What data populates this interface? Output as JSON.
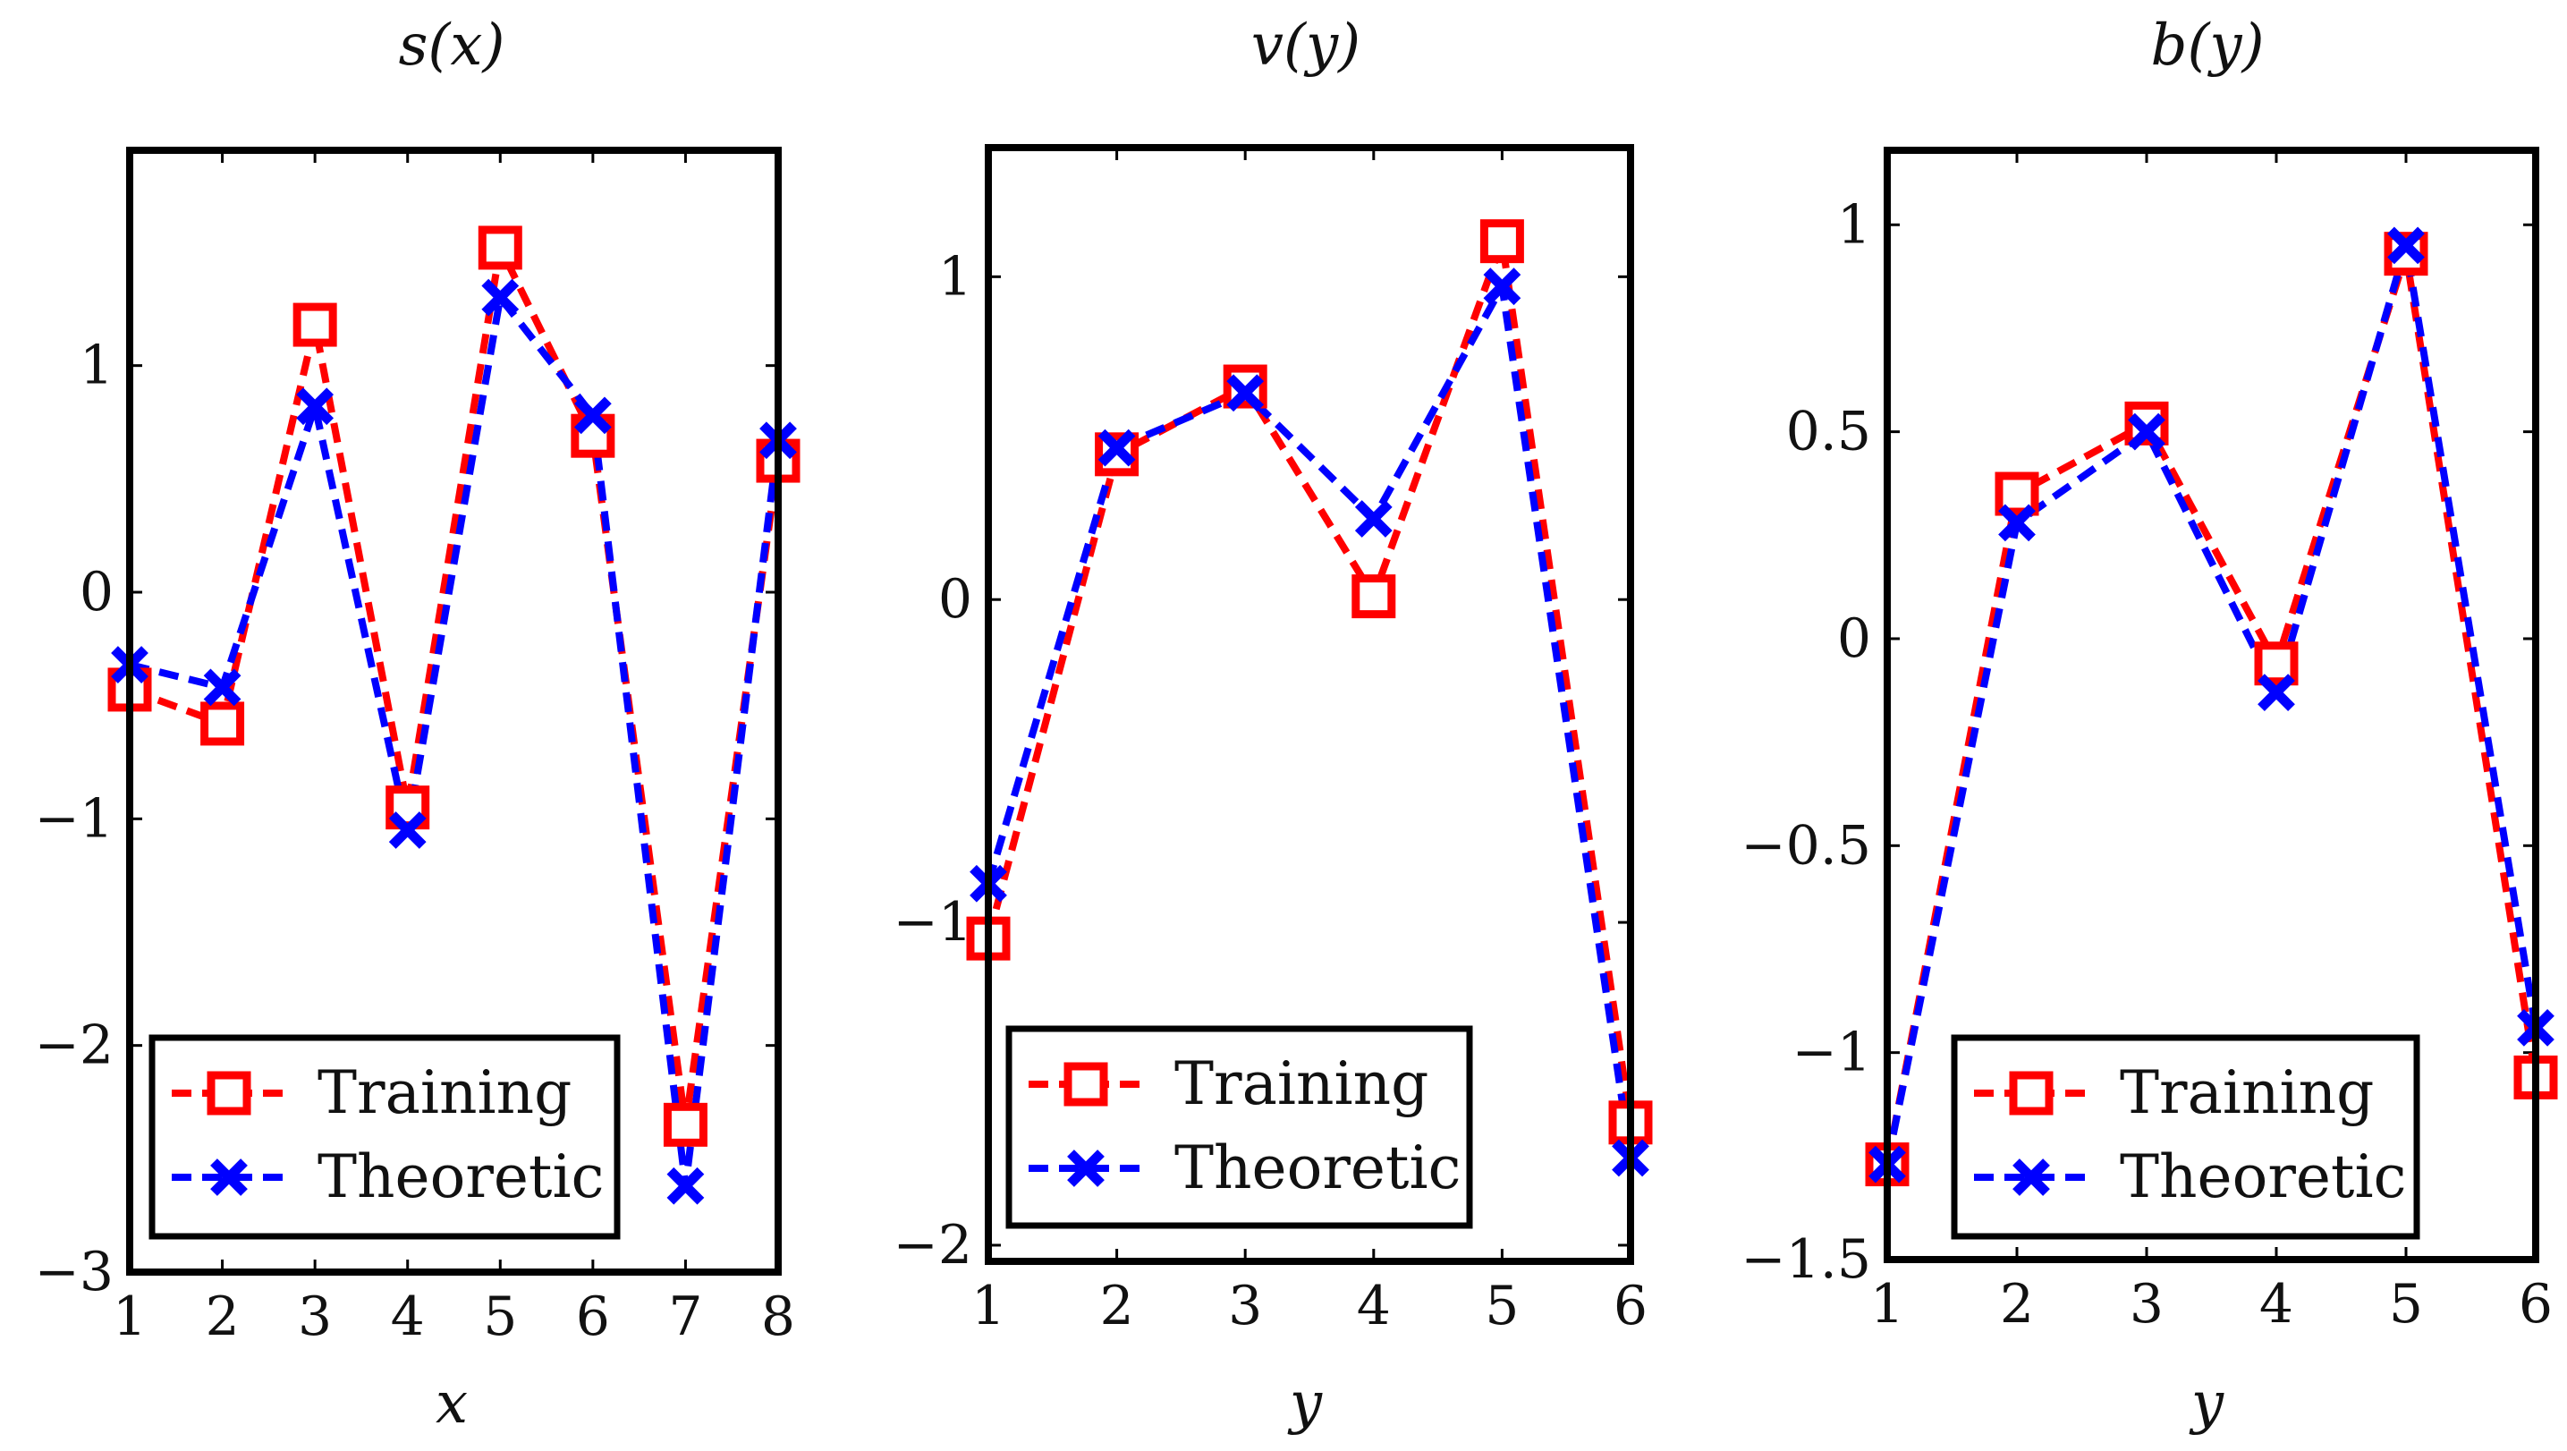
{
  "colors": {
    "training": "#ff0000",
    "theoretic": "#0000ff",
    "axis": "#000000"
  },
  "legend_labels": [
    "Training",
    "Theoretic"
  ],
  "chart_data": [
    {
      "type": "line",
      "title": "s(x)",
      "xlabel": "x",
      "ylabel": "",
      "x": [
        1,
        2,
        3,
        4,
        5,
        6,
        7,
        8
      ],
      "xlim": [
        1,
        8
      ],
      "ylim": [
        -3,
        1.95
      ],
      "xticks": [
        1,
        2,
        3,
        4,
        5,
        6,
        7,
        8
      ],
      "xtick_labels": [
        "1",
        "2",
        "3",
        "4",
        "5",
        "6",
        "7",
        "8"
      ],
      "yticks": [
        -3,
        -2,
        -1,
        0,
        1
      ],
      "ytick_labels": [
        "−3",
        "−2",
        "−1",
        "0",
        "1"
      ],
      "legend": "bottom-left",
      "series": [
        {
          "name": "Training",
          "marker": "square",
          "values": [
            -0.43,
            -0.58,
            1.18,
            -0.95,
            1.52,
            0.69,
            -2.35,
            0.58
          ]
        },
        {
          "name": "Theoretic",
          "marker": "x",
          "values": [
            -0.32,
            -0.42,
            0.82,
            -1.05,
            1.3,
            0.78,
            -2.62,
            0.67
          ]
        }
      ]
    },
    {
      "type": "line",
      "title": "v(y)",
      "xlabel": "y",
      "ylabel": "",
      "x": [
        1,
        2,
        3,
        4,
        5,
        6
      ],
      "xlim": [
        1,
        6
      ],
      "ylim": [
        -2.05,
        1.4
      ],
      "xticks": [
        1,
        2,
        3,
        4,
        5,
        6
      ],
      "xtick_labels": [
        "1",
        "2",
        "3",
        "4",
        "5",
        "6"
      ],
      "yticks": [
        -2,
        -1,
        0,
        1
      ],
      "ytick_labels": [
        "−2",
        "−1",
        "0",
        "1"
      ],
      "legend": "bottom-left",
      "series": [
        {
          "name": "Training",
          "marker": "square",
          "values": [
            -1.05,
            0.45,
            0.66,
            0.01,
            1.11,
            -1.62
          ]
        },
        {
          "name": "Theoretic",
          "marker": "x",
          "values": [
            -0.88,
            0.47,
            0.64,
            0.25,
            0.97,
            -1.73
          ]
        }
      ]
    },
    {
      "type": "line",
      "title": "b(y)",
      "xlabel": "y",
      "ylabel": "",
      "x": [
        1,
        2,
        3,
        4,
        5,
        6
      ],
      "xlim": [
        1,
        6
      ],
      "ylim": [
        -1.5,
        1.18
      ],
      "xticks": [
        1,
        2,
        3,
        4,
        5,
        6
      ],
      "xtick_labels": [
        "1",
        "2",
        "3",
        "4",
        "5",
        "6"
      ],
      "yticks": [
        -1.5,
        -1,
        -0.5,
        0,
        0.5,
        1
      ],
      "ytick_labels": [
        "−1.5",
        "−1",
        "−0.5",
        "0",
        "0.5",
        "1"
      ],
      "legend": "bottom-left",
      "series": [
        {
          "name": "Training",
          "marker": "square",
          "values": [
            -1.27,
            0.35,
            0.52,
            -0.06,
            0.93,
            -1.06
          ]
        },
        {
          "name": "Theoretic",
          "marker": "x",
          "values": [
            -1.27,
            0.28,
            0.5,
            -0.13,
            0.95,
            -0.94
          ]
        }
      ]
    }
  ]
}
